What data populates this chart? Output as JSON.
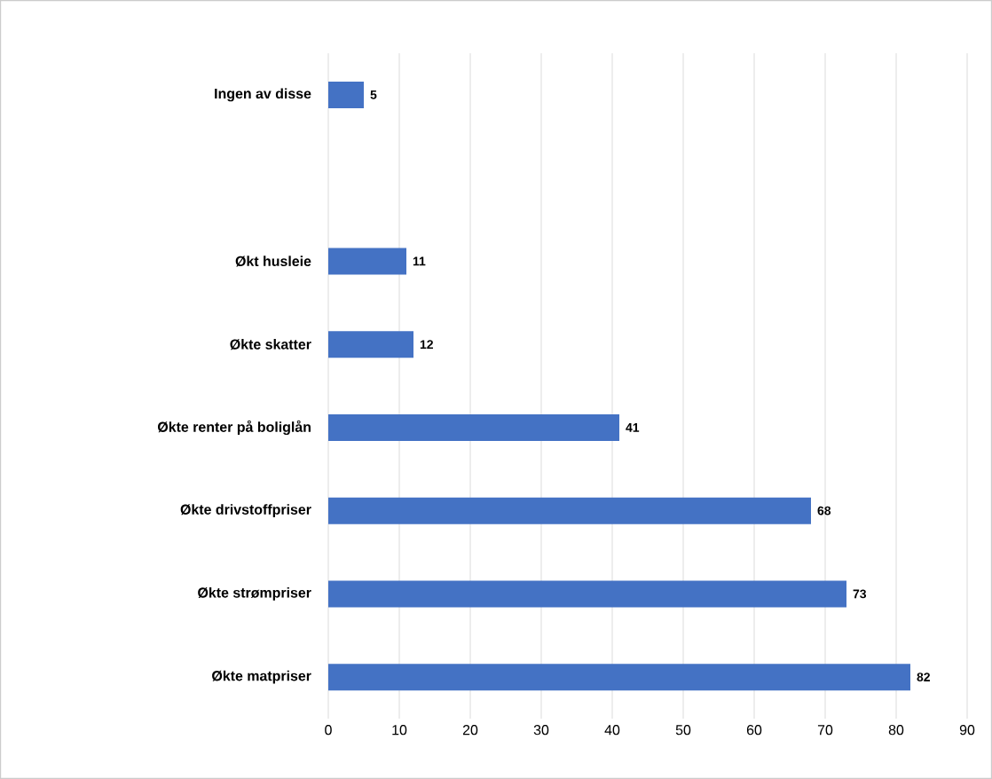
{
  "chart_data": {
    "type": "bar",
    "orientation": "horizontal",
    "categories": [
      "Ingen av disse",
      null,
      "Økt husleie",
      "Økte skatter",
      "Økte renter på boliglån",
      "Økte drivstoffpriser",
      "Økte strømpriser",
      "Økte matpriser"
    ],
    "values": [
      5,
      null,
      11,
      12,
      41,
      68,
      73,
      82
    ],
    "color": "#4472c4",
    "xlim": [
      0,
      90
    ],
    "xticks": [
      0,
      10,
      20,
      30,
      40,
      50,
      60,
      70,
      80,
      90
    ],
    "grid": "x",
    "data_labels": true
  }
}
